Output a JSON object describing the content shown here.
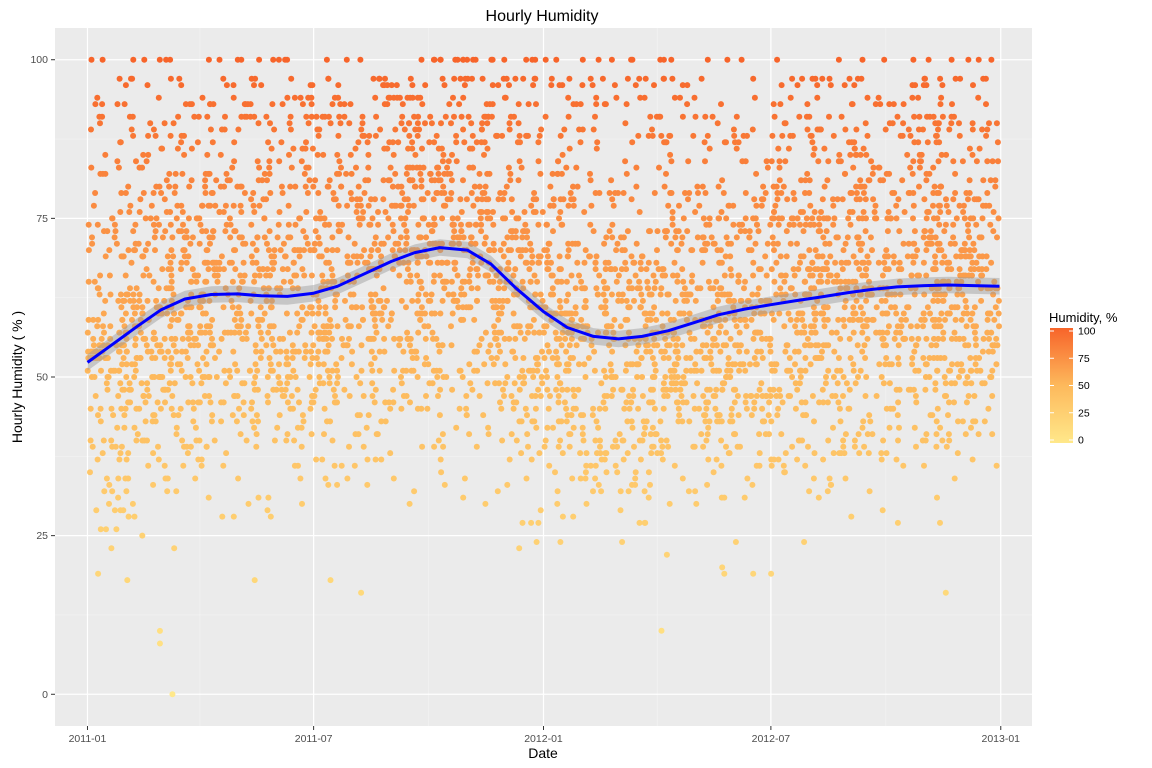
{
  "chart_data": {
    "type": "scatter",
    "title": "Hourly Humidity",
    "xlabel": "Date",
    "ylabel": "Hourly Humidity ( % )",
    "xlim": [
      "2010-12-06",
      "2013-01-26"
    ],
    "ylim": [
      -5,
      105
    ],
    "x_ticks": [
      "2011-01",
      "2011-07",
      "2012-01",
      "2012-07",
      "2013-01"
    ],
    "y_ticks": [
      0,
      25,
      50,
      75,
      100
    ],
    "grid": true,
    "color_scale": {
      "title": "Humidity, %",
      "low_color": "#FFE88A",
      "mid_color": "#FDB95C",
      "high_color": "#F7642A",
      "range": [
        0,
        100
      ],
      "breaks": [
        0,
        25,
        50,
        75,
        100
      ],
      "legend_position": "right"
    },
    "point_distribution": {
      "x_range": [
        "2011-01-01",
        "2012-12-31"
      ],
      "y_range": [
        0,
        100
      ],
      "note_discrete_levels": [
        0,
        8,
        10,
        15,
        16,
        18,
        19,
        20,
        21,
        22,
        23,
        24,
        25,
        26,
        27,
        28,
        29,
        30,
        31,
        32,
        33,
        34,
        35,
        36,
        37,
        38,
        39,
        40,
        41,
        42,
        43,
        44,
        45,
        46,
        47,
        48,
        49,
        50,
        51,
        52,
        53,
        54,
        55,
        56,
        57,
        58,
        59,
        60,
        61,
        62,
        63,
        64,
        65,
        66,
        67,
        68,
        69,
        70,
        71,
        72,
        73,
        74,
        75,
        76,
        77,
        78,
        79,
        80,
        81,
        82,
        83,
        84,
        85,
        86,
        87,
        88,
        89,
        90,
        91,
        93,
        94,
        96,
        97,
        100
      ]
    },
    "smooth_line": {
      "color": "#0000FF",
      "band_color": "#999999",
      "points": [
        {
          "x": "2011-01-01",
          "y": 52.3
        },
        {
          "x": "2011-01-20",
          "y": 55.0
        },
        {
          "x": "2011-02-10",
          "y": 58.0
        },
        {
          "x": "2011-03-01",
          "y": 60.6
        },
        {
          "x": "2011-03-20",
          "y": 62.3
        },
        {
          "x": "2011-04-10",
          "y": 63.0
        },
        {
          "x": "2011-05-01",
          "y": 63.1
        },
        {
          "x": "2011-05-20",
          "y": 62.8
        },
        {
          "x": "2011-06-10",
          "y": 62.7
        },
        {
          "x": "2011-07-01",
          "y": 63.2
        },
        {
          "x": "2011-07-20",
          "y": 64.3
        },
        {
          "x": "2011-08-10",
          "y": 66.2
        },
        {
          "x": "2011-09-01",
          "y": 68.2
        },
        {
          "x": "2011-09-20",
          "y": 69.6
        },
        {
          "x": "2011-10-10",
          "y": 70.4
        },
        {
          "x": "2011-11-01",
          "y": 70.0
        },
        {
          "x": "2011-11-20",
          "y": 67.8
        },
        {
          "x": "2011-12-10",
          "y": 64.0
        },
        {
          "x": "2012-01-01",
          "y": 60.3
        },
        {
          "x": "2012-01-20",
          "y": 57.8
        },
        {
          "x": "2012-02-10",
          "y": 56.4
        },
        {
          "x": "2012-03-01",
          "y": 56.0
        },
        {
          "x": "2012-03-20",
          "y": 56.4
        },
        {
          "x": "2012-04-10",
          "y": 57.3
        },
        {
          "x": "2012-05-01",
          "y": 58.6
        },
        {
          "x": "2012-05-20",
          "y": 59.8
        },
        {
          "x": "2012-06-10",
          "y": 60.7
        },
        {
          "x": "2012-07-01",
          "y": 61.4
        },
        {
          "x": "2012-07-20",
          "y": 62.0
        },
        {
          "x": "2012-08-10",
          "y": 62.6
        },
        {
          "x": "2012-09-01",
          "y": 63.3
        },
        {
          "x": "2012-09-20",
          "y": 63.8
        },
        {
          "x": "2012-10-10",
          "y": 64.2
        },
        {
          "x": "2012-11-01",
          "y": 64.4
        },
        {
          "x": "2012-11-20",
          "y": 64.5
        },
        {
          "x": "2012-12-10",
          "y": 64.4
        },
        {
          "x": "2012-12-31",
          "y": 64.3
        }
      ]
    }
  }
}
